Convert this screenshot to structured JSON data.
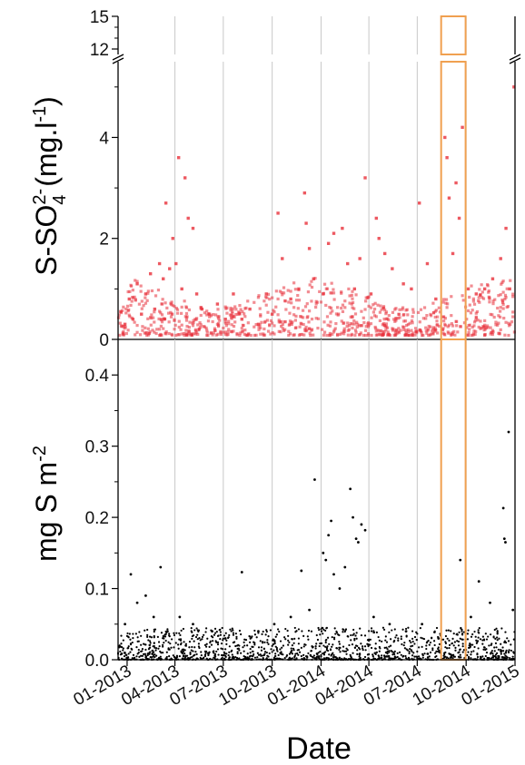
{
  "chart_data": [
    {
      "type": "scatter",
      "title": "",
      "xlabel": "Date",
      "ylabel": "S-SO42- (mg.l-1)",
      "ylabel_parts": {
        "a": "S-SO",
        "sup": "2-",
        "sub": "4",
        "b": " (mg.l",
        "sup2": "-1",
        "c": ")"
      },
      "xlim": [
        "2012-12-15",
        "2015-01-01"
      ],
      "ylim": [
        0,
        5.5
      ],
      "ylim_upper_panel": [
        11.5,
        15
      ],
      "y_axis_break": true,
      "yticks": [
        0,
        2,
        4
      ],
      "yticks_upper": [
        12,
        15
      ],
      "grid": "vertical lines at x ticks",
      "marker": "square",
      "color": "#e8303a",
      "highlight_window": [
        "2014-08-15",
        "2014-09-30"
      ],
      "highlight_color": "#f0a050",
      "points": [
        [
          "2012-12-20",
          0.55
        ],
        [
          "2012-12-28",
          0.3
        ],
        [
          "2013-01-05",
          0.8
        ],
        [
          "2013-01-12",
          0.4
        ],
        [
          "2013-01-20",
          1.1
        ],
        [
          "2013-01-28",
          0.5
        ],
        [
          "2013-02-05",
          0.9
        ],
        [
          "2013-02-14",
          1.3
        ],
        [
          "2013-02-22",
          0.6
        ],
        [
          "2013-03-03",
          1.5
        ],
        [
          "2013-03-10",
          1.2
        ],
        [
          "2013-03-15",
          2.7
        ],
        [
          "2013-03-22",
          1.4
        ],
        [
          "2013-03-28",
          2.0
        ],
        [
          "2013-04-03",
          1.5
        ],
        [
          "2013-04-08",
          3.6
        ],
        [
          "2013-04-14",
          1.0
        ],
        [
          "2013-04-20",
          3.2
        ],
        [
          "2013-04-26",
          2.4
        ],
        [
          "2013-05-05",
          2.2
        ],
        [
          "2013-05-12",
          0.9
        ],
        [
          "2013-05-22",
          0.6
        ],
        [
          "2013-06-05",
          0.5
        ],
        [
          "2013-06-20",
          0.7
        ],
        [
          "2013-07-05",
          0.4
        ],
        [
          "2013-07-20",
          0.9
        ],
        [
          "2013-08-05",
          0.4
        ],
        [
          "2013-08-20",
          0.6
        ],
        [
          "2013-09-05",
          0.3
        ],
        [
          "2013-09-20",
          0.9
        ],
        [
          "2013-10-01",
          0.5
        ],
        [
          "2013-10-12",
          2.5
        ],
        [
          "2013-10-20",
          1.6
        ],
        [
          "2013-11-05",
          0.8
        ],
        [
          "2013-11-20",
          1.0
        ],
        [
          "2013-12-01",
          2.9
        ],
        [
          "2013-12-04",
          2.3
        ],
        [
          "2013-12-10",
          1.8
        ],
        [
          "2013-12-18",
          1.2
        ],
        [
          "2014-01-05",
          0.9
        ],
        [
          "2014-01-15",
          1.9
        ],
        [
          "2014-01-25",
          2.1
        ],
        [
          "2014-02-10",
          2.2
        ],
        [
          "2014-02-20",
          1.5
        ],
        [
          "2014-03-05",
          1.0
        ],
        [
          "2014-03-15",
          1.6
        ],
        [
          "2014-03-25",
          3.2
        ],
        [
          "2014-04-05",
          0.9
        ],
        [
          "2014-04-15",
          2.4
        ],
        [
          "2014-04-20",
          2.0
        ],
        [
          "2014-05-01",
          1.7
        ],
        [
          "2014-05-15",
          1.4
        ],
        [
          "2014-06-05",
          1.1
        ],
        [
          "2014-06-20",
          1.0
        ],
        [
          "2014-07-05",
          2.7
        ],
        [
          "2014-07-20",
          1.5
        ],
        [
          "2014-08-05",
          0.8
        ],
        [
          "2014-08-22",
          4.0
        ],
        [
          "2014-08-26",
          3.6
        ],
        [
          "2014-08-30",
          2.8
        ],
        [
          "2014-09-06",
          1.7
        ],
        [
          "2014-09-12",
          3.1
        ],
        [
          "2014-09-18",
          2.4
        ],
        [
          "2014-09-24",
          4.2
        ],
        [
          "2014-10-05",
          1.0
        ],
        [
          "2014-10-20",
          0.9
        ],
        [
          "2014-11-05",
          1.0
        ],
        [
          "2014-11-20",
          1.2
        ],
        [
          "2014-12-05",
          1.6
        ],
        [
          "2014-12-15",
          2.2
        ],
        [
          "2014-12-22",
          1.0
        ],
        [
          "2014-12-30",
          5.0
        ]
      ],
      "baseline_band": {
        "low": 0.1,
        "high": 0.8
      }
    },
    {
      "type": "scatter",
      "title": "",
      "xlabel": "Date",
      "ylabel": "mg S m-2",
      "ylabel_parts": {
        "a": "mg S m",
        "sup": "-2"
      },
      "xlim": [
        "2012-12-15",
        "2015-01-01"
      ],
      "xticks": [
        "01-2013",
        "04-2013",
        "07-2013",
        "10-2013",
        "01-2014",
        "04-2014",
        "07-2014",
        "10-2014",
        "01-2015"
      ],
      "xtick_dates": [
        "2013-01-01",
        "2013-04-01",
        "2013-07-01",
        "2013-10-01",
        "2014-01-01",
        "2014-04-01",
        "2014-07-01",
        "2014-10-01",
        "2015-01-01"
      ],
      "ylim": [
        0,
        0.45
      ],
      "yticks": [
        "0.0",
        "0.1",
        "0.2",
        "0.3",
        "0.4"
      ],
      "grid": "vertical lines at x ticks",
      "marker": "dot",
      "color": "#000000",
      "highlight_window": [
        "2014-08-15",
        "2014-09-30"
      ],
      "highlight_color": "#f0a050",
      "points": [
        [
          "2012-12-28",
          0.05
        ],
        [
          "2013-01-08",
          0.12
        ],
        [
          "2013-01-20",
          0.08
        ],
        [
          "2013-02-05",
          0.09
        ],
        [
          "2013-02-20",
          0.06
        ],
        [
          "2013-03-05",
          0.13
        ],
        [
          "2013-03-18",
          0.04
        ],
        [
          "2013-04-10",
          0.06
        ],
        [
          "2013-05-05",
          0.05
        ],
        [
          "2013-06-10",
          0.04
        ],
        [
          "2013-07-05",
          0.03
        ],
        [
          "2013-08-05",
          0.123
        ],
        [
          "2013-09-05",
          0.04
        ],
        [
          "2013-10-05",
          0.05
        ],
        [
          "2013-11-05",
          0.06
        ],
        [
          "2013-11-25",
          0.125
        ],
        [
          "2013-12-10",
          0.07
        ],
        [
          "2013-12-20",
          0.253
        ],
        [
          "2014-01-05",
          0.15
        ],
        [
          "2014-01-10",
          0.14
        ],
        [
          "2014-01-15",
          0.175
        ],
        [
          "2014-01-20",
          0.195
        ],
        [
          "2014-01-25",
          0.12
        ],
        [
          "2014-02-05",
          0.1
        ],
        [
          "2014-02-15",
          0.13
        ],
        [
          "2014-02-25",
          0.24
        ],
        [
          "2014-03-02",
          0.2
        ],
        [
          "2014-03-08",
          0.17
        ],
        [
          "2014-03-12",
          0.165
        ],
        [
          "2014-03-18",
          0.19
        ],
        [
          "2014-03-25",
          0.182
        ],
        [
          "2014-04-10",
          0.06
        ],
        [
          "2014-05-10",
          0.05
        ],
        [
          "2014-06-10",
          0.04
        ],
        [
          "2014-07-10",
          0.05
        ],
        [
          "2014-08-10",
          0.03
        ],
        [
          "2014-09-20",
          0.14
        ],
        [
          "2014-10-10",
          0.06
        ],
        [
          "2014-10-25",
          0.11
        ],
        [
          "2014-11-15",
          0.08
        ],
        [
          "2014-12-10",
          0.213
        ],
        [
          "2014-12-12",
          0.17
        ],
        [
          "2014-12-14",
          0.165
        ],
        [
          "2014-12-20",
          0.32
        ],
        [
          "2014-12-28",
          0.07
        ]
      ],
      "baseline_band": {
        "low": 0.0,
        "high": 0.03
      }
    }
  ]
}
